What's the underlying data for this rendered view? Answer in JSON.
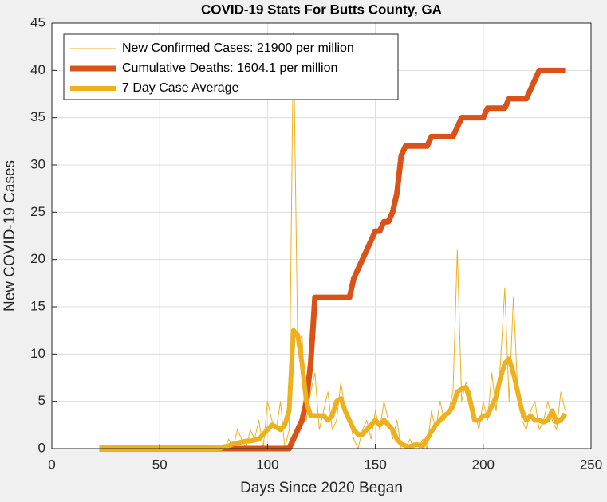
{
  "chart_data": {
    "type": "line",
    "title": "COVID-19 Stats For Butts County, GA",
    "xlabel": "Days Since 2020 Began",
    "ylabel": "New COVID-19 Cases",
    "xlim": [
      0,
      250
    ],
    "xticks": [
      0,
      50,
      100,
      150,
      200,
      250
    ],
    "ylim": [
      0,
      45
    ],
    "yticks": [
      0,
      5,
      10,
      15,
      20,
      25,
      30,
      35,
      40,
      45
    ],
    "grid": true,
    "legend": "top-left",
    "x": [
      22,
      24,
      26,
      28,
      30,
      32,
      34,
      36,
      38,
      40,
      42,
      44,
      46,
      48,
      50,
      52,
      54,
      56,
      58,
      60,
      62,
      64,
      66,
      68,
      70,
      72,
      74,
      76,
      78,
      80,
      82,
      84,
      86,
      88,
      90,
      92,
      94,
      96,
      98,
      100,
      102,
      104,
      106,
      108,
      110,
      112,
      114,
      116,
      118,
      120,
      122,
      124,
      126,
      128,
      130,
      132,
      134,
      136,
      138,
      140,
      142,
      144,
      146,
      148,
      150,
      152,
      154,
      156,
      158,
      160,
      162,
      164,
      166,
      168,
      170,
      172,
      174,
      176,
      178,
      180,
      182,
      184,
      186,
      188,
      190,
      192,
      194,
      196,
      198,
      200,
      202,
      204,
      206,
      208,
      210,
      212,
      214,
      216,
      218,
      220,
      222,
      224,
      226,
      228,
      230,
      232,
      234,
      236,
      238
    ],
    "series": [
      {
        "name": "New Confirmed Cases: 21900 per million",
        "color": "#EDB120",
        "values": [
          0,
          0,
          0,
          0,
          0,
          0,
          0,
          0,
          0,
          0,
          0,
          0,
          0,
          0,
          0,
          0,
          0,
          0,
          0,
          0,
          0,
          0,
          0,
          0,
          0,
          0,
          0,
          0,
          0,
          0,
          1,
          0,
          2,
          1,
          0,
          2,
          1,
          3,
          0,
          5,
          3,
          2,
          5,
          0,
          2,
          44,
          11,
          12,
          3,
          6,
          8,
          2,
          4,
          6,
          2,
          3,
          7,
          4,
          3,
          1,
          0,
          2,
          3,
          1,
          4,
          2,
          5,
          3,
          1,
          3,
          0,
          0,
          1,
          0,
          0,
          1,
          0,
          4,
          2,
          5,
          3,
          4,
          6,
          21,
          5,
          7,
          6,
          4,
          2,
          5,
          3,
          8,
          4,
          9,
          17,
          5,
          16,
          6,
          3,
          2,
          4,
          5,
          2,
          3,
          5,
          3,
          2,
          6,
          4
        ]
      },
      {
        "name": "Cumulative Deaths: 1604.1 per million",
        "color": "#D95319",
        "values": [
          0,
          0,
          0,
          0,
          0,
          0,
          0,
          0,
          0,
          0,
          0,
          0,
          0,
          0,
          0,
          0,
          0,
          0,
          0,
          0,
          0,
          0,
          0,
          0,
          0,
          0,
          0,
          0,
          0,
          0,
          0,
          0,
          0,
          0,
          0,
          0,
          0,
          0,
          0,
          0,
          0,
          0,
          0,
          0,
          0,
          1,
          2,
          3,
          5,
          9,
          16,
          16,
          16,
          16,
          16,
          16,
          16,
          16,
          16,
          18,
          19,
          20,
          21,
          22,
          23,
          23,
          24,
          24,
          25,
          27,
          31,
          32,
          32,
          32,
          32,
          32,
          32,
          33,
          33,
          33,
          33,
          33,
          33,
          34,
          35,
          35,
          35,
          35,
          35,
          35,
          36,
          36,
          36,
          36,
          36,
          37,
          37,
          37,
          37,
          37,
          38,
          39,
          40,
          40,
          40,
          40,
          40,
          40,
          40
        ]
      },
      {
        "name": "7 Day Case Average",
        "color": "#EDB120",
        "values": [
          0,
          0,
          0,
          0,
          0,
          0,
          0,
          0,
          0,
          0,
          0,
          0,
          0,
          0,
          0,
          0,
          0,
          0,
          0,
          0,
          0,
          0,
          0,
          0,
          0,
          0,
          0,
          0,
          0,
          0.2,
          0.3,
          0.5,
          0.6,
          0.7,
          0.8,
          0.8,
          0.9,
          1,
          1.5,
          2,
          2.5,
          2.3,
          2,
          2.5,
          4,
          12.5,
          12,
          9,
          5,
          3.5,
          3.5,
          3.5,
          3.5,
          3,
          3.5,
          5,
          5.3,
          4,
          3,
          2,
          1.5,
          1.5,
          2,
          2.5,
          3,
          2.5,
          3,
          2.5,
          2,
          1,
          0.5,
          0.3,
          0.2,
          0.4,
          0.4,
          0.3,
          1,
          1.8,
          2.5,
          3,
          3.5,
          3.8,
          4.5,
          6,
          6.3,
          6.5,
          5,
          3,
          3,
          3.5,
          3.5,
          4.5,
          5.5,
          7.5,
          9,
          9.5,
          8,
          6,
          4,
          3,
          3.5,
          3,
          3,
          2.8,
          3,
          4,
          2.8,
          3,
          3.7
        ]
      }
    ]
  }
}
